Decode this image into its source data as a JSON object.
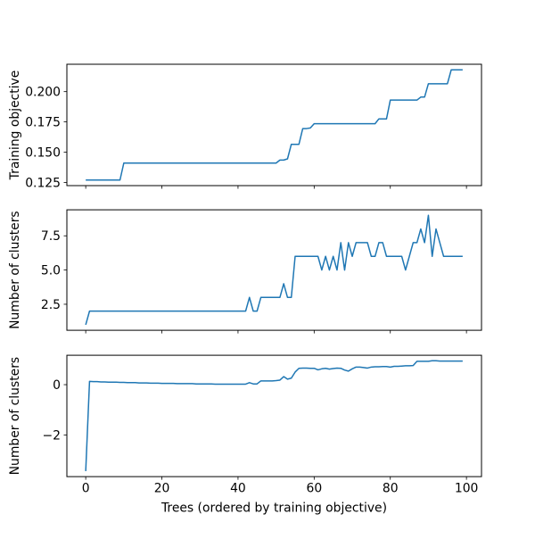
{
  "style": {
    "line_color": "#1f77b4",
    "axis_color": "#000000",
    "text_color": "#000000",
    "background": "#ffffff"
  },
  "shared_x": {
    "xlabel": "Trees (ordered by training objective)",
    "xlim": [
      -4.95,
      103.95
    ],
    "x_ticks": [
      0,
      20,
      40,
      60,
      80,
      100
    ],
    "x_tick_labels": [
      "0",
      "20",
      "40",
      "60",
      "80",
      "100"
    ]
  },
  "chart_data": [
    {
      "type": "line",
      "title": "",
      "ylabel": "Training objective",
      "xlabel": "",
      "grid": false,
      "legend": null,
      "x_tick_labels_visible": false,
      "y_ticks": [
        0.125,
        0.15,
        0.175,
        0.2
      ],
      "y_tick_labels": [
        "0.125",
        "0.150",
        "0.175",
        "0.200"
      ],
      "ylim": [
        0.1224,
        0.2226
      ],
      "xlim": [
        -4.95,
        103.95
      ],
      "x": [
        0,
        1,
        2,
        3,
        4,
        5,
        6,
        7,
        8,
        9,
        10,
        11,
        12,
        13,
        14,
        15,
        16,
        17,
        18,
        19,
        20,
        21,
        22,
        23,
        24,
        25,
        26,
        27,
        28,
        29,
        30,
        31,
        32,
        33,
        34,
        35,
        36,
        37,
        38,
        39,
        40,
        41,
        42,
        43,
        44,
        45,
        46,
        47,
        48,
        49,
        50,
        51,
        52,
        53,
        54,
        55,
        56,
        57,
        58,
        59,
        60,
        61,
        62,
        63,
        64,
        65,
        66,
        67,
        68,
        69,
        70,
        71,
        72,
        73,
        74,
        75,
        76,
        77,
        78,
        79,
        80,
        81,
        82,
        83,
        84,
        85,
        86,
        87,
        88,
        89,
        90,
        91,
        92,
        93,
        94,
        95,
        96,
        97,
        98,
        99
      ],
      "values": [
        0.127,
        0.127,
        0.127,
        0.127,
        0.127,
        0.127,
        0.127,
        0.127,
        0.127,
        0.127,
        0.141,
        0.141,
        0.141,
        0.141,
        0.141,
        0.141,
        0.141,
        0.141,
        0.141,
        0.141,
        0.141,
        0.141,
        0.141,
        0.141,
        0.141,
        0.141,
        0.141,
        0.141,
        0.141,
        0.141,
        0.141,
        0.141,
        0.141,
        0.141,
        0.141,
        0.141,
        0.141,
        0.141,
        0.141,
        0.141,
        0.141,
        0.141,
        0.141,
        0.141,
        0.141,
        0.141,
        0.141,
        0.141,
        0.141,
        0.141,
        0.141,
        0.1435,
        0.1435,
        0.1445,
        0.1565,
        0.1565,
        0.1565,
        0.1695,
        0.1695,
        0.17,
        0.1735,
        0.1735,
        0.1735,
        0.1735,
        0.1735,
        0.1735,
        0.1735,
        0.1735,
        0.1735,
        0.1735,
        0.1735,
        0.1735,
        0.1735,
        0.1735,
        0.1735,
        0.1735,
        0.1735,
        0.1775,
        0.1775,
        0.1775,
        0.193,
        0.193,
        0.193,
        0.193,
        0.193,
        0.193,
        0.193,
        0.193,
        0.1955,
        0.1955,
        0.2065,
        0.2065,
        0.2065,
        0.2065,
        0.2065,
        0.2065,
        0.218,
        0.218,
        0.218,
        0.218
      ]
    },
    {
      "type": "line",
      "title": "",
      "ylabel": "Number of clusters",
      "xlabel": "",
      "grid": false,
      "legend": null,
      "x_tick_labels_visible": false,
      "y_ticks": [
        2.5,
        5.0,
        7.5
      ],
      "y_tick_labels": [
        "2.5",
        "5.0",
        "7.5"
      ],
      "ylim": [
        0.6,
        9.4
      ],
      "xlim": [
        -4.95,
        103.95
      ],
      "x": [
        0,
        1,
        2,
        3,
        4,
        5,
        6,
        7,
        8,
        9,
        10,
        11,
        12,
        13,
        14,
        15,
        16,
        17,
        18,
        19,
        20,
        21,
        22,
        23,
        24,
        25,
        26,
        27,
        28,
        29,
        30,
        31,
        32,
        33,
        34,
        35,
        36,
        37,
        38,
        39,
        40,
        41,
        42,
        43,
        44,
        45,
        46,
        47,
        48,
        49,
        50,
        51,
        52,
        53,
        54,
        55,
        56,
        57,
        58,
        59,
        60,
        61,
        62,
        63,
        64,
        65,
        66,
        67,
        68,
        69,
        70,
        71,
        72,
        73,
        74,
        75,
        76,
        77,
        78,
        79,
        80,
        81,
        82,
        83,
        84,
        85,
        86,
        87,
        88,
        89,
        90,
        91,
        92,
        93,
        94,
        95,
        96,
        97,
        98,
        99
      ],
      "values": [
        1,
        2,
        2,
        2,
        2,
        2,
        2,
        2,
        2,
        2,
        2,
        2,
        2,
        2,
        2,
        2,
        2,
        2,
        2,
        2,
        2,
        2,
        2,
        2,
        2,
        2,
        2,
        2,
        2,
        2,
        2,
        2,
        2,
        2,
        2,
        2,
        2,
        2,
        2,
        2,
        2,
        2,
        2,
        3,
        2,
        2,
        3,
        3,
        3,
        3,
        3,
        3,
        4,
        3,
        3,
        6,
        6,
        6,
        6,
        6,
        6,
        6,
        5,
        6,
        5,
        6,
        5,
        7,
        5,
        7,
        6,
        7,
        7,
        7,
        7,
        6,
        6,
        7,
        7,
        6,
        6,
        6,
        6,
        6,
        5,
        6,
        7,
        7,
        8,
        7,
        9,
        6,
        8,
        7,
        6,
        6,
        6,
        6,
        6,
        6
      ]
    },
    {
      "type": "line",
      "title": "",
      "ylabel": "Number of clusters",
      "xlabel": "Trees (ordered by training objective)",
      "grid": false,
      "legend": null,
      "x_tick_labels_visible": true,
      "y_ticks": [
        -2,
        0
      ],
      "y_tick_labels": [
        "−2",
        "0"
      ],
      "ylim": [
        -3.66,
        1.17
      ],
      "xlim": [
        -4.95,
        103.95
      ],
      "x": [
        0,
        1,
        2,
        3,
        4,
        5,
        6,
        7,
        8,
        9,
        10,
        11,
        12,
        13,
        14,
        15,
        16,
        17,
        18,
        19,
        20,
        21,
        22,
        23,
        24,
        25,
        26,
        27,
        28,
        29,
        30,
        31,
        32,
        33,
        34,
        35,
        36,
        37,
        38,
        39,
        40,
        41,
        42,
        43,
        44,
        45,
        46,
        47,
        48,
        49,
        50,
        51,
        52,
        53,
        54,
        55,
        56,
        57,
        58,
        59,
        60,
        61,
        62,
        63,
        64,
        65,
        66,
        67,
        68,
        69,
        70,
        71,
        72,
        73,
        74,
        75,
        76,
        77,
        78,
        79,
        80,
        81,
        82,
        83,
        84,
        85,
        86,
        87,
        88,
        89,
        90,
        91,
        92,
        93,
        94,
        95,
        96,
        97,
        98,
        99
      ],
      "values": [
        -3.44,
        0.13,
        0.12,
        0.12,
        0.11,
        0.11,
        0.1,
        0.1,
        0.1,
        0.09,
        0.09,
        0.08,
        0.08,
        0.08,
        0.07,
        0.07,
        0.07,
        0.06,
        0.06,
        0.06,
        0.05,
        0.05,
        0.05,
        0.05,
        0.04,
        0.04,
        0.04,
        0.04,
        0.04,
        0.03,
        0.03,
        0.03,
        0.03,
        0.03,
        0.02,
        0.02,
        0.02,
        0.02,
        0.02,
        0.02,
        0.02,
        0.02,
        0.02,
        0.08,
        0.03,
        0.03,
        0.15,
        0.15,
        0.15,
        0.15,
        0.16,
        0.18,
        0.32,
        0.22,
        0.26,
        0.5,
        0.65,
        0.66,
        0.66,
        0.65,
        0.65,
        0.59,
        0.63,
        0.65,
        0.62,
        0.64,
        0.66,
        0.65,
        0.58,
        0.54,
        0.63,
        0.7,
        0.7,
        0.68,
        0.66,
        0.7,
        0.71,
        0.71,
        0.72,
        0.72,
        0.7,
        0.73,
        0.73,
        0.74,
        0.75,
        0.75,
        0.76,
        0.93,
        0.93,
        0.93,
        0.93,
        0.95,
        0.95,
        0.94,
        0.94,
        0.94,
        0.94,
        0.94,
        0.94,
        0.94
      ]
    }
  ]
}
